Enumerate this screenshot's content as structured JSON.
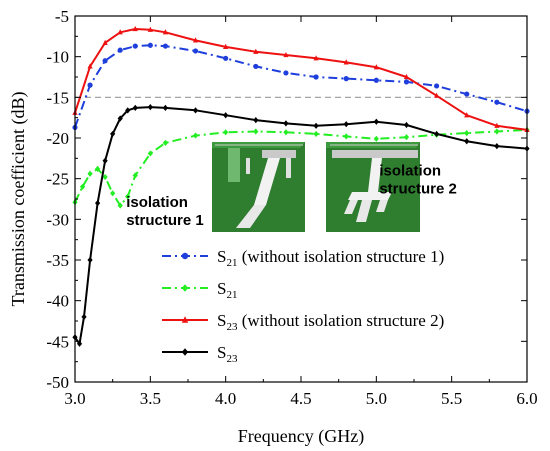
{
  "chart_data": {
    "type": "line",
    "xlabel": "Frequency (GHz)",
    "ylabel": "Transmission coefficient (dB)",
    "xlim": [
      3.0,
      6.0
    ],
    "ylim": [
      -50,
      -5
    ],
    "x_ticks": [
      "3.0",
      "3.5",
      "4.0",
      "4.5",
      "5.0",
      "5.5",
      "6.0"
    ],
    "y_ticks": [
      "-50",
      "-45",
      "-40",
      "-35",
      "-30",
      "-25",
      "-20",
      "-15",
      "-10",
      "-5"
    ],
    "reference_line": {
      "y": -15,
      "style": "dashed",
      "color": "#999999"
    },
    "grid": false,
    "legend_position": "bottom-right inside",
    "series": [
      {
        "name_main": "S",
        "name_sub": "21",
        "name_suffix": " (without isolation structure 1)",
        "color": "#1f3fdc",
        "dash": "dash-dot",
        "marker": "circle",
        "x": [
          3.0,
          3.1,
          3.2,
          3.3,
          3.4,
          3.5,
          3.6,
          3.8,
          4.0,
          4.2,
          4.4,
          4.6,
          4.8,
          5.0,
          5.2,
          5.4,
          5.6,
          5.8,
          6.0
        ],
        "y": [
          -18.7,
          -13.5,
          -10.5,
          -9.2,
          -8.7,
          -8.6,
          -8.7,
          -9.3,
          -10.2,
          -11.2,
          -12.0,
          -12.5,
          -12.7,
          -12.9,
          -13.1,
          -13.6,
          -14.6,
          -15.6,
          -16.7
        ]
      },
      {
        "name_main": "S",
        "name_sub": "21",
        "name_suffix": "",
        "color": "#22ee22",
        "dash": "dash-dot",
        "marker": "diamond",
        "x": [
          3.0,
          3.05,
          3.1,
          3.15,
          3.2,
          3.25,
          3.3,
          3.35,
          3.4,
          3.5,
          3.6,
          3.8,
          4.0,
          4.2,
          4.4,
          4.6,
          4.8,
          5.0,
          5.2,
          5.4,
          5.6,
          5.8,
          6.0
        ],
        "y": [
          -27.9,
          -26.0,
          -24.4,
          -23.8,
          -24.8,
          -26.8,
          -28.3,
          -27.2,
          -24.6,
          -21.9,
          -20.6,
          -19.7,
          -19.3,
          -19.2,
          -19.3,
          -19.5,
          -19.8,
          -20.1,
          -19.9,
          -19.6,
          -19.4,
          -19.2,
          -19.0
        ]
      },
      {
        "name_main": "S",
        "name_sub": "23",
        "name_suffix": " (without isolation structure 2)",
        "color": "#ee1111",
        "dash": "solid",
        "marker": "triangle",
        "x": [
          3.0,
          3.1,
          3.2,
          3.3,
          3.4,
          3.5,
          3.6,
          3.8,
          4.0,
          4.2,
          4.4,
          4.6,
          4.8,
          5.0,
          5.2,
          5.4,
          5.6,
          5.8,
          6.0
        ],
        "y": [
          -16.9,
          -11.2,
          -8.3,
          -7.0,
          -6.6,
          -6.7,
          -7.0,
          -8.0,
          -8.8,
          -9.4,
          -9.8,
          -10.2,
          -10.7,
          -11.3,
          -12.5,
          -14.8,
          -17.2,
          -18.5,
          -19.0
        ]
      },
      {
        "name_main": "S",
        "name_sub": "23",
        "name_suffix": "",
        "color": "#000000",
        "dash": "solid",
        "marker": "diamond",
        "x": [
          3.0,
          3.03,
          3.06,
          3.1,
          3.15,
          3.2,
          3.25,
          3.3,
          3.35,
          3.4,
          3.5,
          3.6,
          3.8,
          4.0,
          4.2,
          4.4,
          4.6,
          4.8,
          5.0,
          5.2,
          5.4,
          5.6,
          5.8,
          6.0
        ],
        "y": [
          -44.5,
          -45.3,
          -42.0,
          -35.0,
          -28.0,
          -22.8,
          -19.5,
          -17.6,
          -16.6,
          -16.3,
          -16.2,
          -16.3,
          -16.6,
          -17.2,
          -17.8,
          -18.2,
          -18.5,
          -18.3,
          -18.0,
          -18.4,
          -19.5,
          -20.4,
          -21.0,
          -21.3
        ]
      }
    ],
    "annotations": [
      {
        "lines": [
          "isolation",
          "structure 1"
        ],
        "x": 3.34,
        "y": -28.5
      },
      {
        "lines": [
          "isolation",
          "structure 2"
        ],
        "x": 5.02,
        "y": -24.6
      }
    ]
  }
}
